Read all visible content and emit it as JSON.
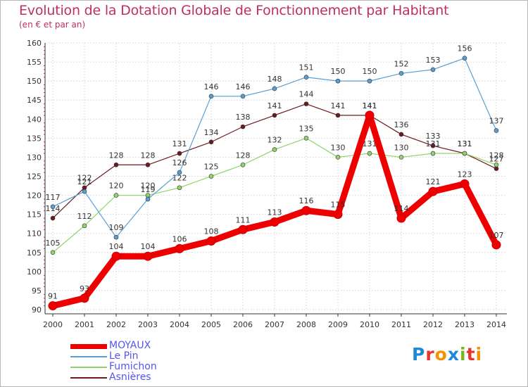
{
  "header": {
    "title": "Evolution de la Dotation Globale de Fonctionnement par Habitant",
    "subtitle": "(en € et par an)"
  },
  "logo": {
    "text": "Proxiti"
  },
  "chart_data": {
    "type": "line",
    "title": "Evolution de la Dotation Globale de Fonctionnement par Habitant",
    "subtitle": "(en € et par an)",
    "xlabel": "",
    "ylabel": "",
    "x": [
      2000,
      2001,
      2002,
      2003,
      2004,
      2005,
      2006,
      2007,
      2008,
      2009,
      2010,
      2011,
      2012,
      2013,
      2014
    ],
    "ylim": [
      90,
      160
    ],
    "yticks": [
      90,
      95,
      100,
      105,
      110,
      115,
      120,
      125,
      130,
      135,
      140,
      145,
      150,
      155,
      160
    ],
    "grid": true,
    "legend_position": "bottom-left",
    "series": [
      {
        "name": "Asnières",
        "color": "#6b1a1f",
        "values": [
          114,
          122,
          128,
          128,
          131,
          134,
          138,
          141,
          144,
          141,
          141,
          136,
          133,
          131,
          127
        ]
      },
      {
        "name": "Fumichon",
        "color": "#8fd46a",
        "values": [
          105,
          112,
          120,
          120,
          122,
          125,
          128,
          132,
          135,
          130,
          131,
          130,
          131,
          131,
          128
        ]
      },
      {
        "name": "Le Pin",
        "color": "#5a9fd4",
        "values": [
          117,
          121,
          109,
          119,
          126,
          146,
          146,
          148,
          151,
          150,
          150,
          152,
          153,
          156,
          137
        ]
      },
      {
        "name": "MOYAUX",
        "color": "#ee0000",
        "values": [
          91,
          93,
          104,
          104,
          106,
          108,
          111,
          113,
          116,
          115,
          141,
          114,
          121,
          123,
          107
        ]
      }
    ],
    "legend": [
      {
        "name": "MOYAUX",
        "color": "#ee0000",
        "text_color": "#5555ee"
      },
      {
        "name": "Le Pin",
        "color": "#5a9fd4",
        "text_color": "#5555ee"
      },
      {
        "name": "Fumichon",
        "color": "#8fd46a",
        "text_color": "#5555ee"
      },
      {
        "name": "Asnières",
        "color": "#6b1a1f",
        "text_color": "#5555ee"
      }
    ]
  }
}
